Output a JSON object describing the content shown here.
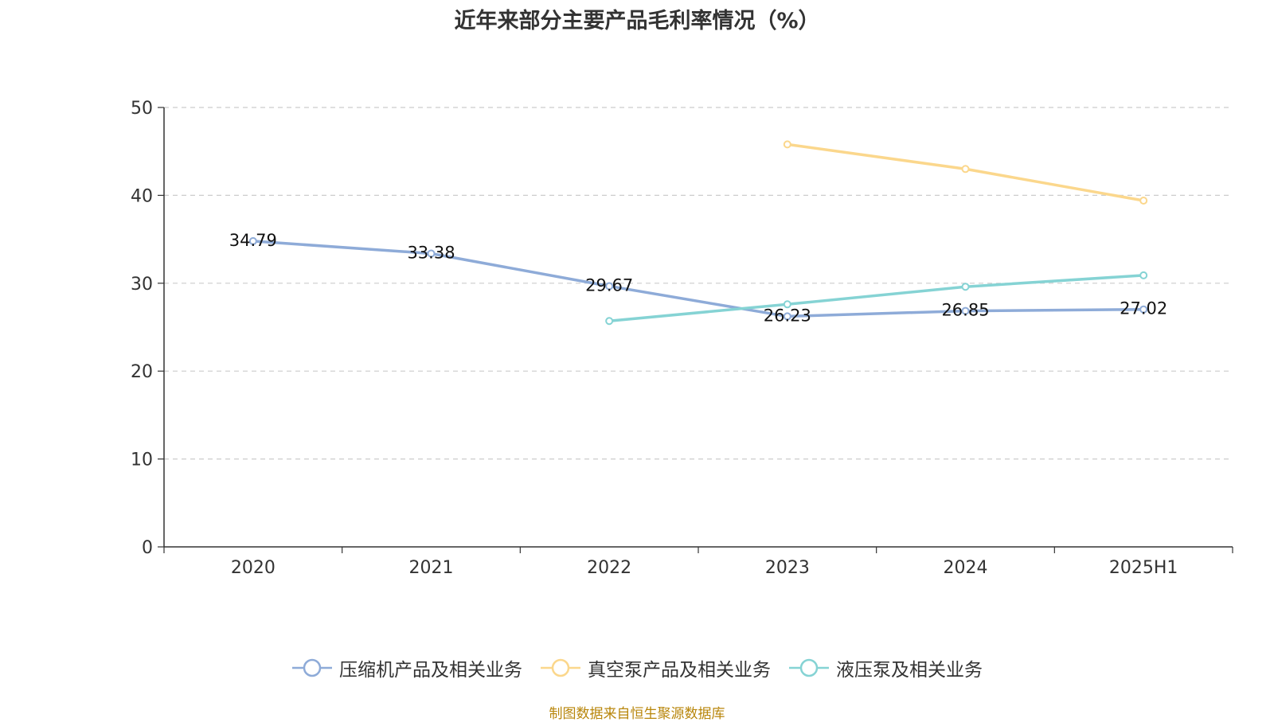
{
  "chart_data": {
    "type": "line",
    "title": "近年来部分主要产品毛利率情况（%）",
    "categories": [
      "2020",
      "2021",
      "2022",
      "2023",
      "2024",
      "2025H1"
    ],
    "ylim": [
      0,
      50
    ],
    "yticks": [
      "0",
      "10",
      "20",
      "30",
      "40",
      "50"
    ],
    "grid": true,
    "legend_position": "bottom",
    "series": [
      {
        "name": "压缩机产品及相关业务",
        "color": "#8eabd8",
        "values": [
          34.79,
          33.38,
          29.67,
          26.23,
          26.85,
          27.02
        ],
        "labels": [
          "34.79",
          "33.38",
          "29.67",
          "26.23",
          "26.85",
          "27.02"
        ]
      },
      {
        "name": "真空泵产品及相关业务",
        "color": "#fbd78c",
        "values": [
          null,
          null,
          null,
          45.8,
          43.0,
          39.4
        ],
        "labels": [
          null,
          null,
          null,
          null,
          null,
          null
        ]
      },
      {
        "name": "液压泵及相关业务",
        "color": "#85d3d4",
        "values": [
          null,
          null,
          25.7,
          27.6,
          29.6,
          30.9
        ],
        "labels": [
          null,
          null,
          null,
          null,
          null,
          null
        ]
      }
    ]
  },
  "source_note": "制图数据来自恒生聚源数据库"
}
